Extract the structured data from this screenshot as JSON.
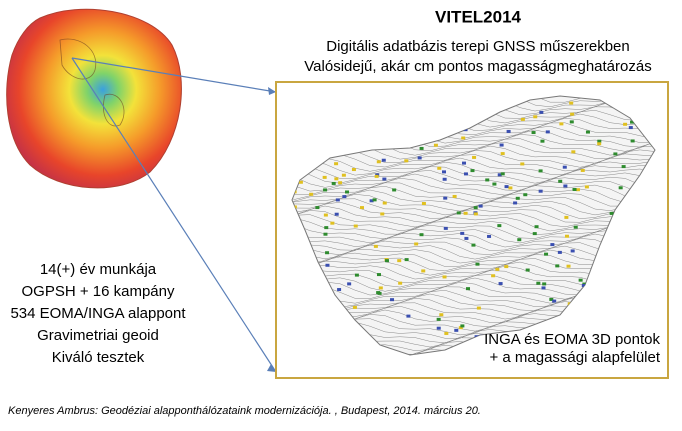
{
  "slide": {
    "title": "VITEL2014",
    "subtitle": [
      "Digitális  adatbázis terepi GNSS műszerekben",
      "Valósidejű, akár cm pontos magasságmeghatározás"
    ],
    "left_text": [
      "14(+) év munkája",
      "OGPSH + 16 kampány",
      "534 EOMA/INGA alappont",
      "Gravimetriai geoid",
      "Kiváló  tesztek"
    ],
    "map_caption": [
      "INGA és EOMA 3D pontok",
      "+ a magassági alapfelület"
    ],
    "footer": "Kenyeres Ambrus: Geodéziai alapponthálózataink modernizációja. , Budapest, 2014. március 20."
  }
}
